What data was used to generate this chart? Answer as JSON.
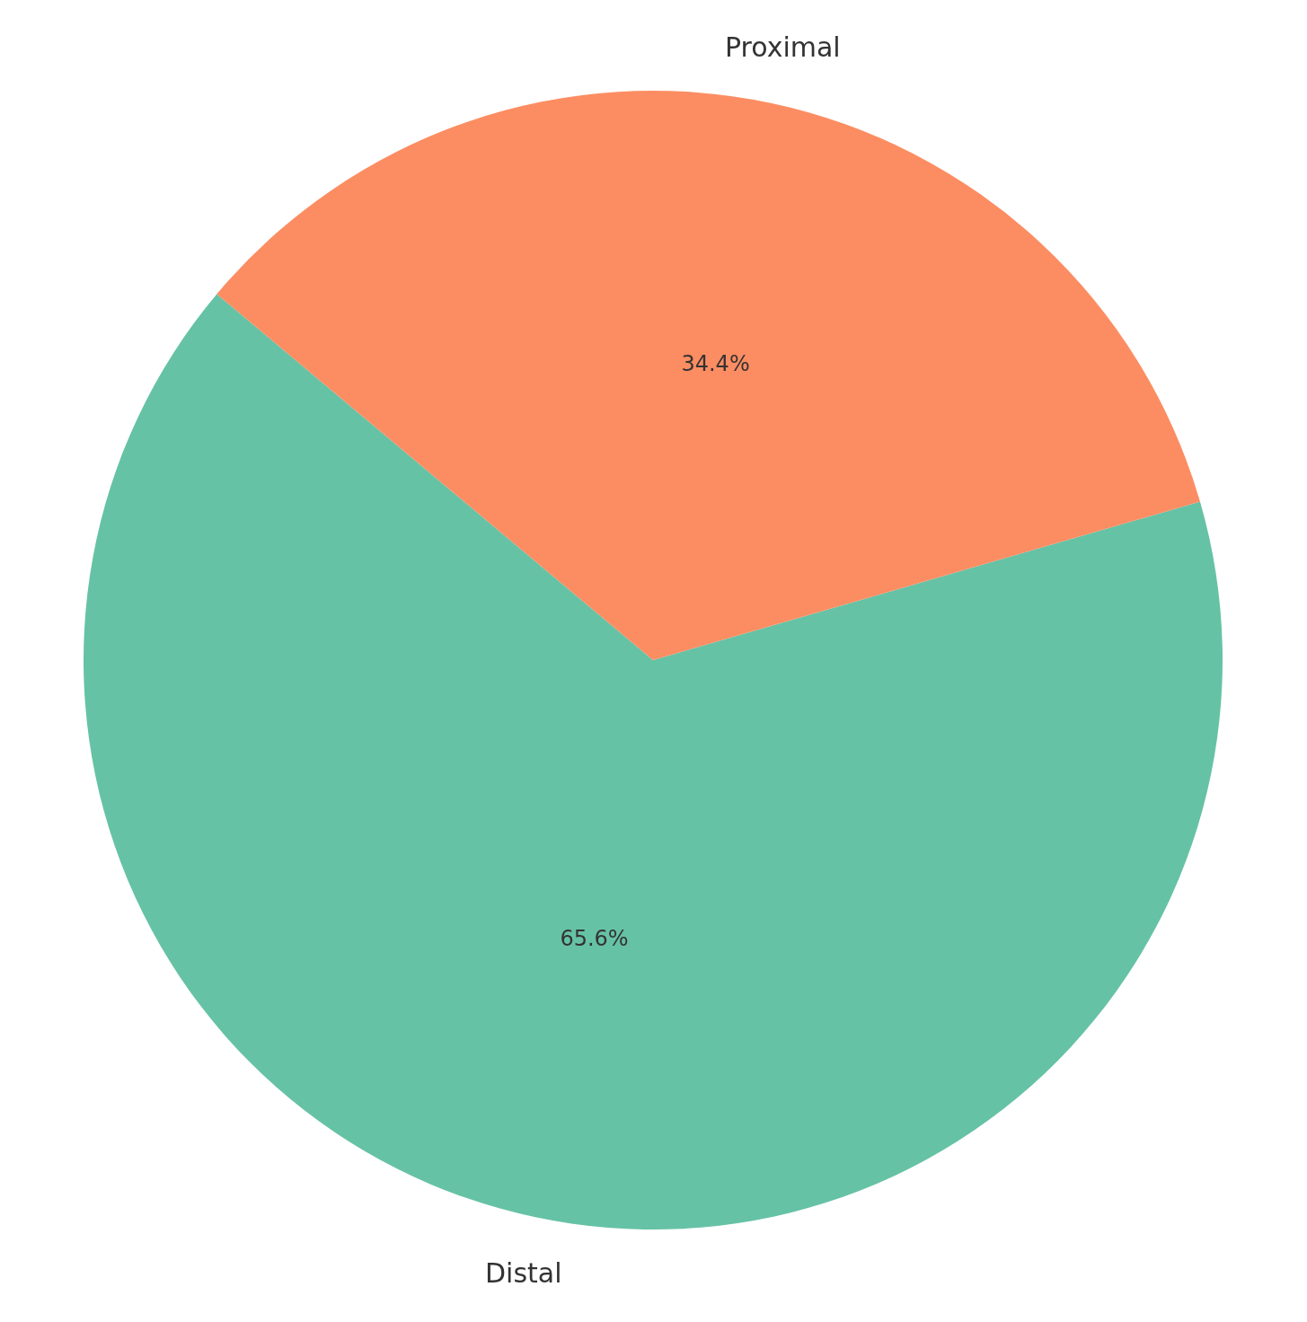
{
  "chart_data": {
    "type": "pie",
    "categories": [
      "Distal",
      "Proximal"
    ],
    "values": [
      65.6,
      34.4
    ],
    "colors": [
      "#66c2a5",
      "#fc8d62"
    ],
    "value_labels": [
      "65.6%",
      "34.4%"
    ],
    "legend": false
  }
}
